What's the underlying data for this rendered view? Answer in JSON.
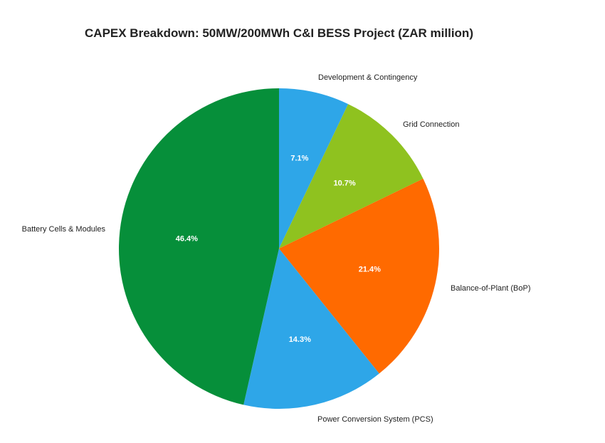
{
  "chart_data": {
    "type": "pie",
    "title": "CAPEX Breakdown: 50MW/200MWh C&I BESS Project (ZAR million)",
    "start_angle_deg": 0,
    "direction": "clockwise",
    "slices": [
      {
        "label": "Development & Contingency",
        "percent": 7.1,
        "percent_label": "7.1%",
        "color": "#2ea6e8"
      },
      {
        "label": "Grid Connection",
        "percent": 10.7,
        "percent_label": "10.7%",
        "color": "#8fc21f"
      },
      {
        "label": "Balance-of-Plant (BoP)",
        "percent": 21.4,
        "percent_label": "21.4%",
        "color": "#ff6a00"
      },
      {
        "label": "Power Conversion System (PCS)",
        "percent": 14.3,
        "percent_label": "14.3%",
        "color": "#2ea6e8"
      },
      {
        "label": "Battery Cells & Modules",
        "percent": 46.4,
        "percent_label": "46.4%",
        "color": "#068f3a"
      }
    ]
  }
}
